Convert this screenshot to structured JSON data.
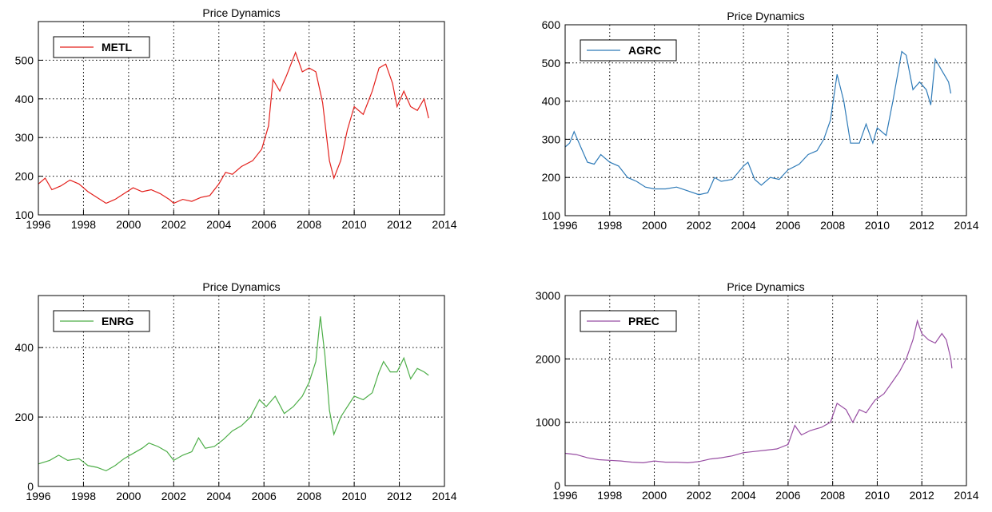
{
  "chart_data": [
    {
      "type": "line",
      "title": "Price Dynamics",
      "xlim": [
        1996,
        2014
      ],
      "xticks": [
        1996,
        1998,
        2000,
        2002,
        2004,
        2006,
        2008,
        2010,
        2012,
        2014
      ],
      "ylim": [
        100,
        600
      ],
      "yticks": [
        100,
        200,
        300,
        400,
        500
      ],
      "grid": true,
      "legend": "upper left",
      "x": [
        1996,
        1996.3,
        1996.6,
        1997,
        1997.4,
        1997.8,
        1998.2,
        1998.6,
        1999,
        1999.4,
        1999.8,
        2000.2,
        2000.6,
        2001,
        2001.4,
        2001.8,
        2002,
        2002.4,
        2002.8,
        2003.2,
        2003.6,
        2004,
        2004.3,
        2004.6,
        2005,
        2005.5,
        2005.9,
        2006.2,
        2006.4,
        2006.7,
        2007,
        2007.4,
        2007.7,
        2008,
        2008.3,
        2008.6,
        2008.9,
        2009.1,
        2009.4,
        2009.7,
        2010,
        2010.4,
        2010.8,
        2011.1,
        2011.4,
        2011.7,
        2011.9,
        2012.2,
        2012.5,
        2012.8,
        2013.1,
        2013.3
      ],
      "series": [
        {
          "name": "METL",
          "color": "#e3201c",
          "values": [
            180,
            195,
            165,
            175,
            190,
            180,
            160,
            145,
            130,
            140,
            155,
            170,
            160,
            165,
            155,
            140,
            130,
            140,
            135,
            145,
            150,
            180,
            210,
            205,
            225,
            240,
            270,
            330,
            450,
            420,
            460,
            520,
            470,
            480,
            470,
            390,
            240,
            195,
            240,
            320,
            380,
            360,
            420,
            480,
            490,
            440,
            380,
            420,
            380,
            370,
            400,
            350
          ]
        }
      ]
    },
    {
      "type": "line",
      "title": "Price Dynamics",
      "xlim": [
        1996,
        2014
      ],
      "xticks": [
        1996,
        1998,
        2000,
        2002,
        2004,
        2006,
        2008,
        2010,
        2012,
        2014
      ],
      "ylim": [
        100,
        600
      ],
      "yticks": [
        100,
        200,
        300,
        400,
        500,
        600
      ],
      "grid": true,
      "legend": "upper left",
      "x": [
        1996,
        1996.2,
        1996.4,
        1996.7,
        1997,
        1997.3,
        1997.6,
        1998,
        1998.4,
        1998.8,
        1999.2,
        1999.6,
        2000,
        2000.5,
        2001,
        2001.5,
        2002,
        2002.4,
        2002.7,
        2003,
        2003.5,
        2004,
        2004.2,
        2004.5,
        2004.8,
        2005.2,
        2005.6,
        2006,
        2006.5,
        2006.9,
        2007.3,
        2007.6,
        2007.9,
        2008.2,
        2008.5,
        2008.8,
        2009.2,
        2009.5,
        2009.8,
        2010,
        2010.4,
        2010.7,
        2011.1,
        2011.3,
        2011.6,
        2011.9,
        2012.2,
        2012.4,
        2012.6,
        2012.9,
        2013.2,
        2013.3
      ],
      "series": [
        {
          "name": "AGRC",
          "color": "#2f7bb8",
          "values": [
            280,
            290,
            320,
            280,
            240,
            235,
            260,
            240,
            230,
            200,
            190,
            175,
            170,
            170,
            175,
            165,
            155,
            160,
            200,
            190,
            195,
            230,
            240,
            195,
            180,
            200,
            195,
            220,
            235,
            260,
            270,
            300,
            350,
            470,
            400,
            290,
            290,
            340,
            290,
            330,
            310,
            400,
            530,
            520,
            430,
            450,
            430,
            390,
            510,
            480,
            450,
            420
          ]
        }
      ]
    },
    {
      "type": "line",
      "title": "Price Dynamics",
      "xlim": [
        1996,
        2014
      ],
      "xticks": [
        1996,
        1998,
        2000,
        2002,
        2004,
        2006,
        2008,
        2010,
        2012,
        2014
      ],
      "ylim": [
        0,
        550
      ],
      "yticks": [
        0,
        200,
        400
      ],
      "grid": true,
      "legend": "upper left",
      "x": [
        1996,
        1996.5,
        1996.9,
        1997.3,
        1997.8,
        1998.2,
        1998.6,
        1999,
        1999.4,
        1999.8,
        2000.2,
        2000.6,
        2000.9,
        2001.3,
        2001.7,
        2002,
        2002.4,
        2002.8,
        2003.1,
        2003.4,
        2003.8,
        2004.2,
        2004.6,
        2005,
        2005.4,
        2005.8,
        2006.1,
        2006.5,
        2006.9,
        2007.3,
        2007.7,
        2008,
        2008.3,
        2008.5,
        2008.7,
        2008.9,
        2009.1,
        2009.4,
        2009.7,
        2010,
        2010.4,
        2010.8,
        2011.1,
        2011.3,
        2011.6,
        2011.9,
        2012.2,
        2012.5,
        2012.8,
        2013.1,
        2013.3
      ],
      "series": [
        {
          "name": "ENRG",
          "color": "#4dae48",
          "values": [
            65,
            75,
            90,
            75,
            80,
            60,
            55,
            45,
            60,
            80,
            95,
            110,
            125,
            115,
            100,
            75,
            90,
            100,
            140,
            110,
            115,
            135,
            160,
            175,
            200,
            250,
            230,
            260,
            210,
            230,
            260,
            300,
            360,
            490,
            380,
            220,
            150,
            200,
            230,
            260,
            250,
            270,
            330,
            360,
            330,
            330,
            370,
            310,
            340,
            330,
            320
          ]
        }
      ]
    },
    {
      "type": "line",
      "title": "Price Dynamics",
      "xlim": [
        1996,
        2014
      ],
      "xticks": [
        1996,
        1998,
        2000,
        2002,
        2004,
        2006,
        2008,
        2010,
        2012,
        2014
      ],
      "ylim": [
        0,
        3000
      ],
      "yticks": [
        0,
        1000,
        2000,
        3000
      ],
      "grid": true,
      "legend": "upper left",
      "x": [
        1996,
        1996.5,
        1997,
        1997.5,
        1998,
        1998.5,
        1999,
        1999.5,
        2000,
        2000.5,
        2001,
        2001.5,
        2002,
        2002.5,
        2003,
        2003.5,
        2004,
        2004.5,
        2005,
        2005.5,
        2006,
        2006.3,
        2006.6,
        2007,
        2007.5,
        2007.9,
        2008.2,
        2008.6,
        2008.9,
        2009.2,
        2009.5,
        2009.9,
        2010.3,
        2010.6,
        2011,
        2011.3,
        2011.6,
        2011.8,
        2012,
        2012.3,
        2012.6,
        2012.9,
        2013.1,
        2013.3,
        2013.35
      ],
      "series": [
        {
          "name": "PREC",
          "color": "#984ea3",
          "values": [
            510,
            490,
            440,
            410,
            400,
            390,
            370,
            360,
            390,
            370,
            370,
            360,
            380,
            420,
            440,
            470,
            520,
            540,
            560,
            580,
            650,
            950,
            800,
            870,
            920,
            1000,
            1300,
            1200,
            1000,
            1200,
            1150,
            1350,
            1450,
            1600,
            1800,
            2000,
            2300,
            2600,
            2400,
            2300,
            2250,
            2400,
            2300,
            2000,
            1850
          ]
        }
      ]
    }
  ]
}
